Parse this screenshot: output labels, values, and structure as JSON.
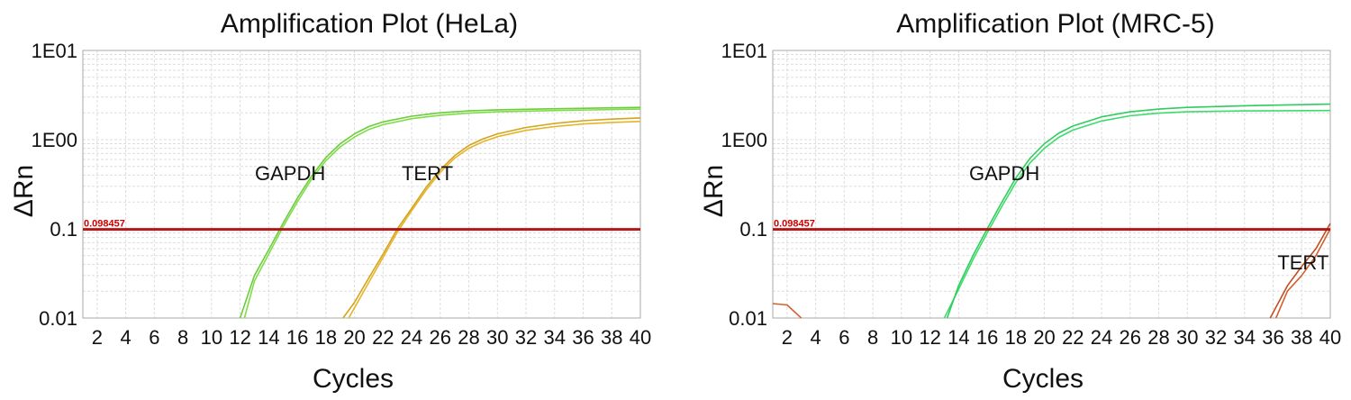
{
  "colors": {
    "grid": "#dddddd",
    "axis": "#aaaaaa",
    "threshold": "#b01818",
    "threshold_label": "#cc0000",
    "text": "#111111",
    "gapdh": [
      "#7fdd4a",
      "#6ccc3a"
    ],
    "gapdh_mrc5": [
      "#3ddc6a",
      "#2fcc5e"
    ],
    "tert": [
      "#e6b42a",
      "#d4a41c"
    ],
    "tert_mrc5": [
      "#d46030",
      "#c04e22"
    ]
  },
  "chart_data": [
    {
      "type": "line",
      "title": "Amplification Plot (HeLa)",
      "xlabel": "Cycles",
      "ylabel": "ΔRn",
      "yscale": "log",
      "xlim": [
        1,
        40
      ],
      "ylim": [
        0.01,
        10
      ],
      "xticks": [
        2,
        4,
        6,
        8,
        10,
        12,
        14,
        16,
        18,
        20,
        22,
        24,
        26,
        28,
        30,
        32,
        34,
        36,
        38,
        40
      ],
      "yticks": [
        {
          "value": 0.01,
          "label": "0.01"
        },
        {
          "value": 0.1,
          "label": "0.1"
        },
        {
          "value": 1,
          "label": "1E00"
        },
        {
          "value": 10,
          "label": "1E01"
        }
      ],
      "grid": true,
      "threshold": {
        "value": 0.098457,
        "label": "0.098457"
      },
      "annotations": [
        {
          "text": "GAPDH",
          "x": 15.5,
          "y": 0.35
        },
        {
          "text": "TERT",
          "x": 25.1,
          "y": 0.35
        }
      ],
      "series": [
        {
          "color_key": "gapdh",
          "x": [
            12.3,
            13,
            14,
            15,
            16,
            17,
            18,
            19,
            20,
            21,
            22,
            24,
            26,
            28,
            30,
            34,
            40
          ],
          "y": [
            0.01,
            0.026,
            0.052,
            0.105,
            0.2,
            0.36,
            0.58,
            0.83,
            1.07,
            1.3,
            1.47,
            1.72,
            1.88,
            1.98,
            2.05,
            2.12,
            2.2
          ]
        },
        {
          "color_key": "gapdh",
          "x": [
            12.0,
            13,
            14,
            15,
            16,
            17,
            18,
            19,
            20,
            21,
            22,
            24,
            26,
            28,
            30,
            34,
            40
          ],
          "y": [
            0.01,
            0.03,
            0.058,
            0.115,
            0.22,
            0.39,
            0.63,
            0.9,
            1.16,
            1.4,
            1.58,
            1.83,
            2.0,
            2.1,
            2.16,
            2.22,
            2.3
          ]
        },
        {
          "color_key": "tert",
          "x": [
            19.6,
            20,
            21,
            22,
            23,
            24,
            25,
            26,
            27,
            28,
            29,
            30,
            32,
            34,
            36,
            38,
            40
          ],
          "y": [
            0.01,
            0.013,
            0.025,
            0.048,
            0.092,
            0.16,
            0.27,
            0.43,
            0.62,
            0.8,
            0.95,
            1.08,
            1.27,
            1.4,
            1.5,
            1.56,
            1.6
          ]
        },
        {
          "color_key": "tert",
          "x": [
            19.2,
            20,
            21,
            22,
            23,
            24,
            25,
            26,
            27,
            28,
            29,
            30,
            32,
            34,
            36,
            38,
            40
          ],
          "y": [
            0.01,
            0.015,
            0.028,
            0.052,
            0.1,
            0.17,
            0.29,
            0.46,
            0.66,
            0.86,
            1.02,
            1.16,
            1.37,
            1.52,
            1.63,
            1.7,
            1.75
          ]
        }
      ]
    },
    {
      "type": "line",
      "title": "Amplification Plot (MRC-5)",
      "xlabel": "Cycles",
      "ylabel": "ΔRn",
      "yscale": "log",
      "xlim": [
        1,
        40
      ],
      "ylim": [
        0.01,
        10
      ],
      "xticks": [
        2,
        4,
        6,
        8,
        10,
        12,
        14,
        16,
        18,
        20,
        22,
        24,
        26,
        28,
        30,
        32,
        34,
        36,
        38,
        40
      ],
      "yticks": [
        {
          "value": 0.01,
          "label": "0.01"
        },
        {
          "value": 0.1,
          "label": "0.1"
        },
        {
          "value": 1,
          "label": "1E00"
        },
        {
          "value": 10,
          "label": "1E01"
        }
      ],
      "grid": true,
      "threshold": {
        "value": 0.098457,
        "label": "0.098457"
      },
      "annotations": [
        {
          "text": "GAPDH",
          "x": 17.2,
          "y": 0.35
        },
        {
          "text": "TERT",
          "x": 38.1,
          "y": 0.035
        }
      ],
      "series": [
        {
          "color_key": "gapdh_mrc5",
          "x": [
            13.0,
            14,
            15,
            16,
            17,
            18,
            19,
            20,
            21,
            22,
            24,
            26,
            28,
            30,
            34,
            40
          ],
          "y": [
            0.01,
            0.021,
            0.045,
            0.09,
            0.175,
            0.33,
            0.55,
            0.8,
            1.06,
            1.28,
            1.62,
            1.85,
            1.98,
            2.05,
            2.1,
            2.12
          ]
        },
        {
          "color_key": "gapdh_mrc5",
          "x": [
            13.2,
            14,
            15,
            16,
            17,
            18,
            19,
            20,
            21,
            22,
            24,
            26,
            28,
            30,
            34,
            40
          ],
          "y": [
            0.01,
            0.023,
            0.05,
            0.1,
            0.195,
            0.37,
            0.62,
            0.9,
            1.18,
            1.42,
            1.8,
            2.05,
            2.2,
            2.3,
            2.4,
            2.5
          ]
        },
        {
          "color_key": "tert_mrc5",
          "x": [
            1,
            2,
            3
          ],
          "y": [
            0.0145,
            0.014,
            0.01
          ]
        },
        {
          "color_key": "tert_mrc5",
          "x": [
            35.8,
            37,
            38,
            39,
            40
          ],
          "y": [
            0.01,
            0.023,
            0.038,
            0.06,
            0.115
          ]
        },
        {
          "color_key": "tert_mrc5",
          "x": [
            36.2,
            37,
            38,
            39,
            40
          ],
          "y": [
            0.01,
            0.02,
            0.03,
            0.05,
            0.1
          ]
        }
      ]
    }
  ]
}
